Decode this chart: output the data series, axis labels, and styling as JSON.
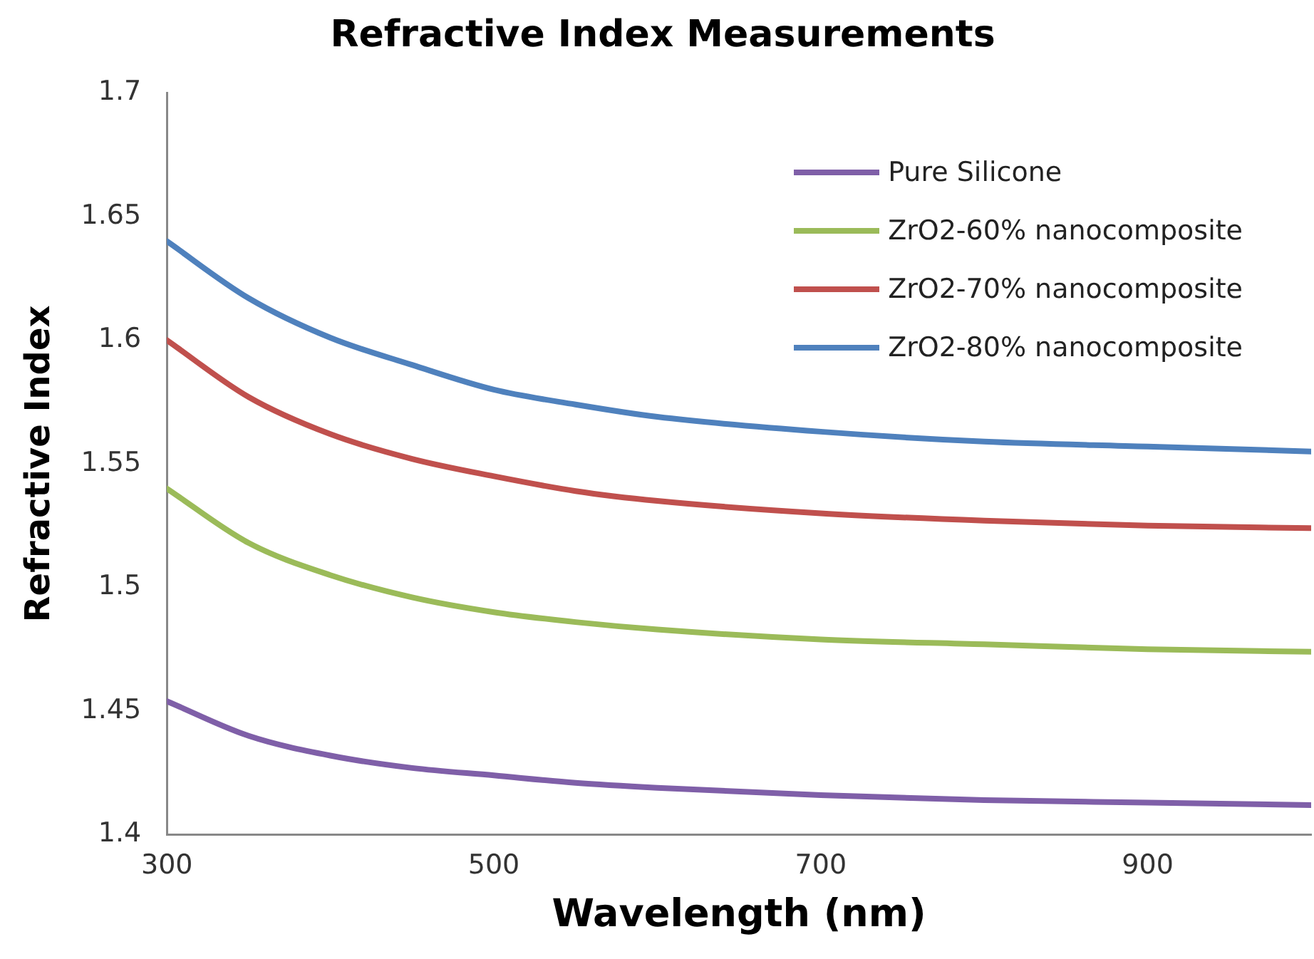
{
  "chart_data": {
    "type": "line",
    "title": "Refractive Index Measurements",
    "xlabel": "Wavelength (nm)",
    "ylabel": "Refractive Index",
    "x": [
      300,
      350,
      400,
      450,
      500,
      550,
      600,
      700,
      800,
      900,
      1000
    ],
    "xlim": [
      300,
      1000
    ],
    "xticks": [
      300,
      500,
      700,
      900
    ],
    "ylim": [
      1.4,
      1.7
    ],
    "yticks": [
      1.4,
      1.45,
      1.5,
      1.55,
      1.6,
      1.65,
      1.7
    ],
    "grid": false,
    "legend": "top right",
    "marker": "none",
    "line_style": "solid",
    "series": [
      {
        "name": "Pure Silicone",
        "color": "#7f5fa8",
        "values": [
          1.454,
          1.44,
          1.432,
          1.427,
          1.424,
          1.421,
          1.419,
          1.416,
          1.414,
          1.413,
          1.412
        ]
      },
      {
        "name": "ZrO2-60% nanocomposite",
        "color": "#9bbb59",
        "values": [
          1.54,
          1.518,
          1.505,
          1.496,
          1.49,
          1.486,
          1.483,
          1.479,
          1.477,
          1.475,
          1.474
        ]
      },
      {
        "name": "ZrO2-70% nanocomposite",
        "color": "#c0504d",
        "values": [
          1.6,
          1.577,
          1.562,
          1.552,
          1.545,
          1.539,
          1.535,
          1.53,
          1.527,
          1.525,
          1.524
        ]
      },
      {
        "name": "ZrO2-80% nanocomposite",
        "color": "#4f81bd",
        "values": [
          1.64,
          1.617,
          1.601,
          1.59,
          1.58,
          1.574,
          1.569,
          1.563,
          1.559,
          1.557,
          1.555
        ]
      }
    ]
  }
}
